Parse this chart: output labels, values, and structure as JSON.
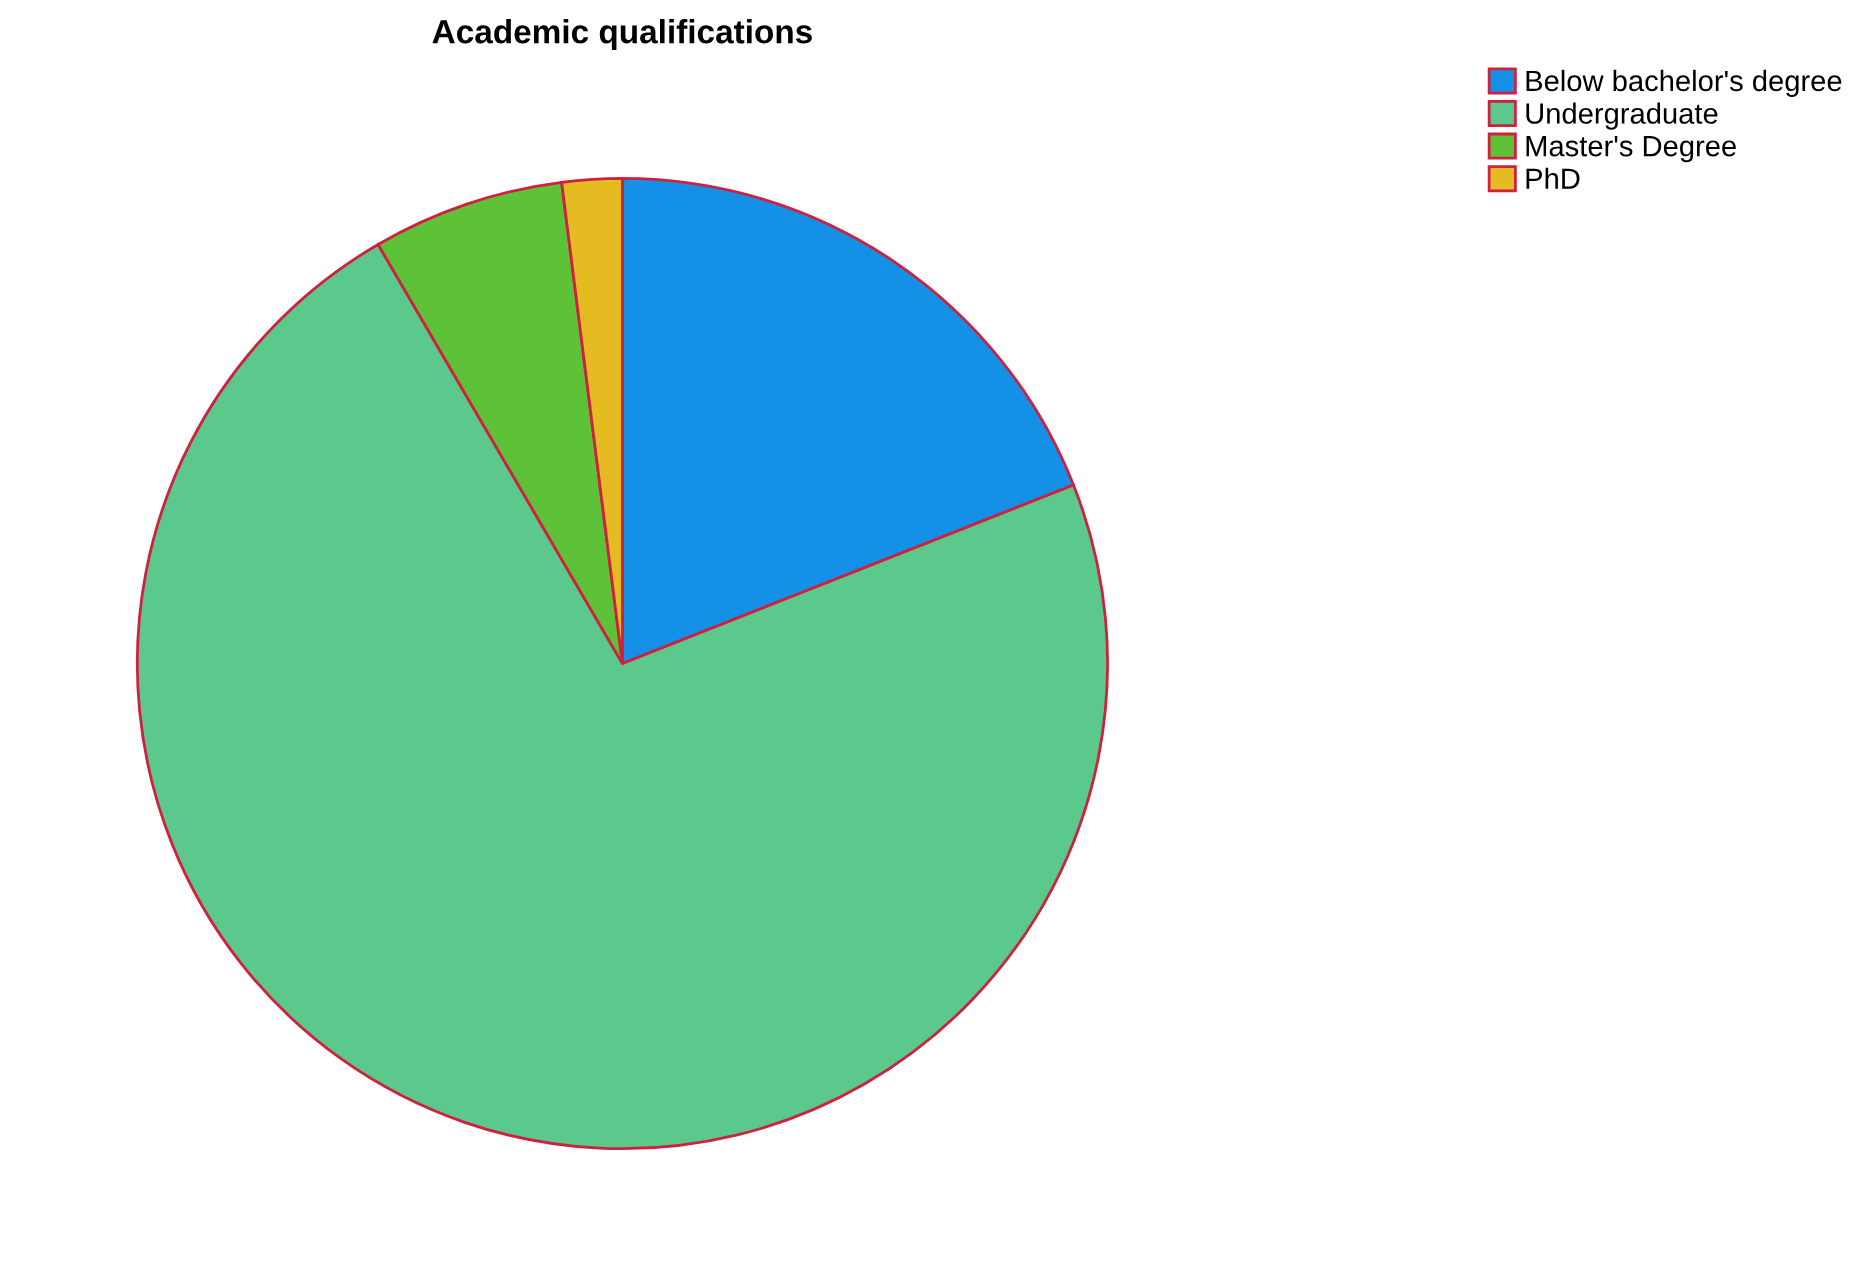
{
  "chart_data": {
    "type": "pie",
    "title": "Academic qualifications",
    "categories": [
      "Below bachelor's degree",
      "Undergraduate",
      "Master's Degree",
      "PhD"
    ],
    "values": [
      19.0,
      72.6,
      6.4,
      2.0
    ],
    "colors": [
      "#1490e6",
      "#5ac98b",
      "#5ec238",
      "#e5bb22"
    ],
    "legend": "top right"
  }
}
